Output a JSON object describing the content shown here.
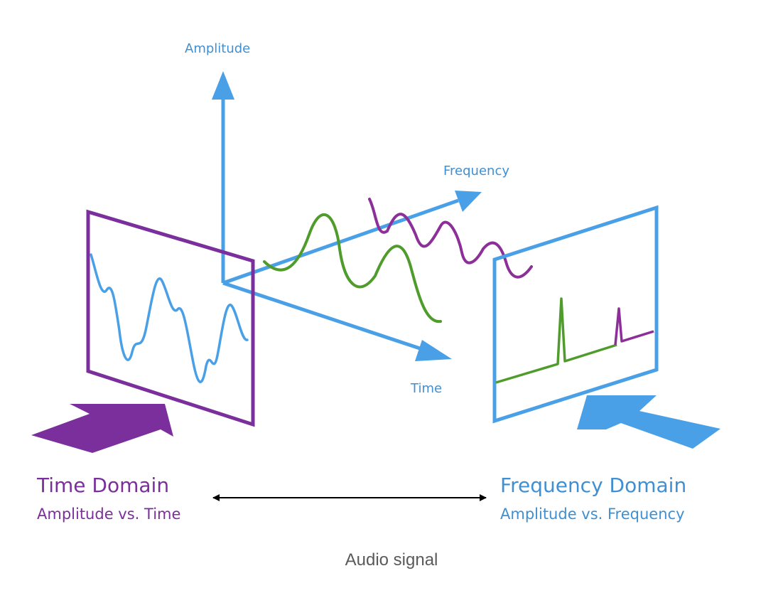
{
  "axes": {
    "amplitude_label": "Amplitude",
    "frequency_label": "Frequency",
    "time_label": "Time"
  },
  "time_domain": {
    "title": "Time Domain",
    "subtitle": "Amplitude vs. Time",
    "color": "#7b2f9c"
  },
  "frequency_domain": {
    "title": "Frequency Domain",
    "subtitle": "Amplitude vs. Frequency",
    "color": "#3f8fd2"
  },
  "colors": {
    "axis": "#4aa0e6",
    "wave_green": "#4f9c2c",
    "wave_purple": "#8d2f98",
    "signal_blue": "#4aa0e6",
    "connector": "#000000"
  },
  "caption": "Audio signal"
}
